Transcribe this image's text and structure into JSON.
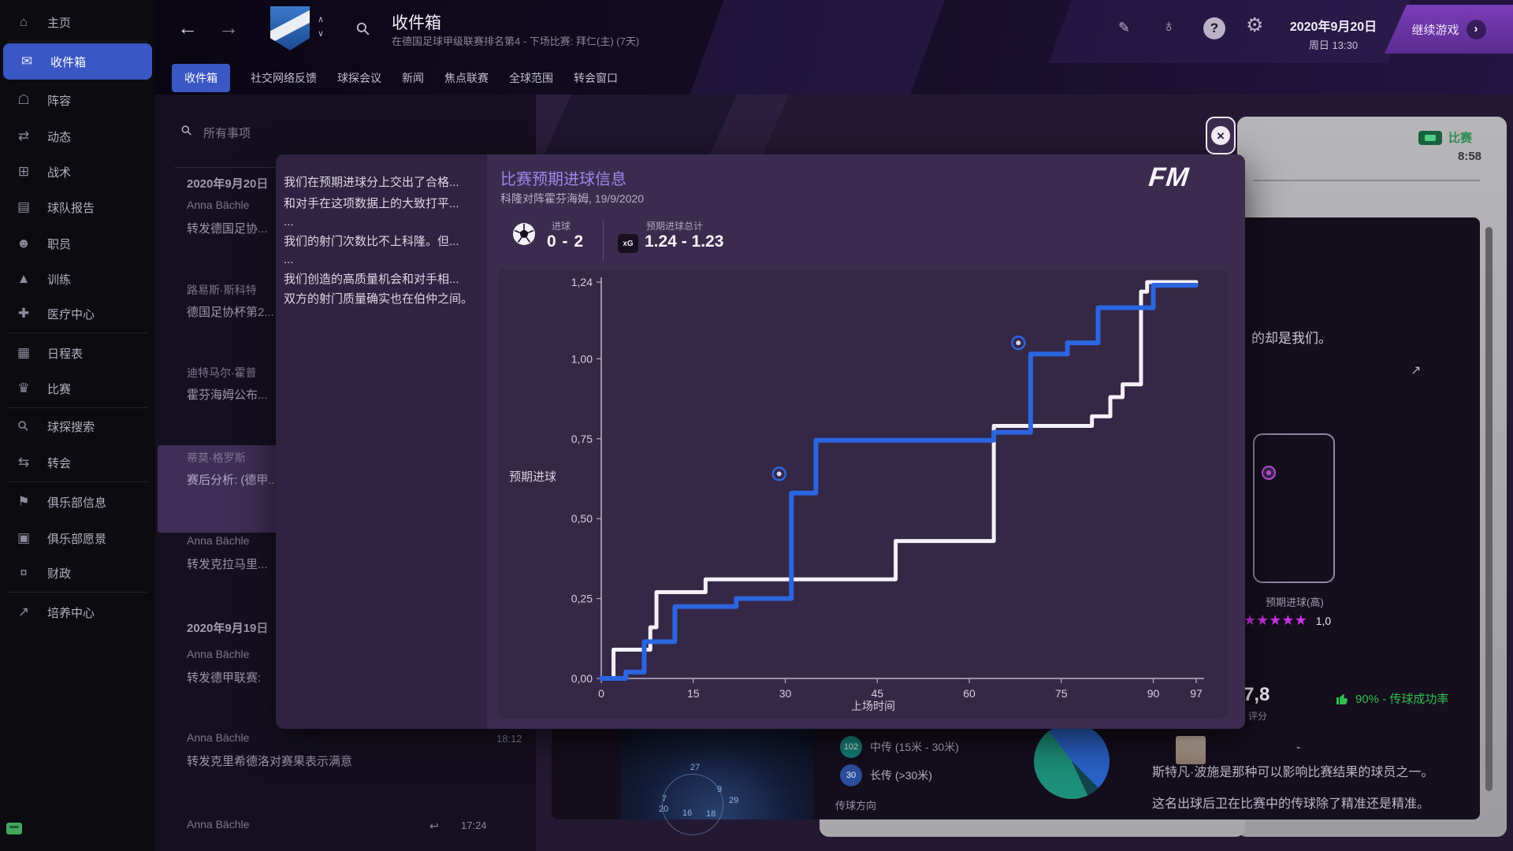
{
  "app": {
    "continue_label": "继续游戏",
    "date_line1": "2020年9月20日",
    "date_line2": "周日 13:30"
  },
  "header": {
    "title": "收件箱",
    "subtitle": "在德国足球甲级联赛排名第4 - 下场比赛: 拜仁(主) (7天)"
  },
  "tabs": [
    {
      "label": "收件箱",
      "active": true
    },
    {
      "label": "社交网络反馈",
      "active": false
    },
    {
      "label": "球探会议",
      "active": false
    },
    {
      "label": "新闻",
      "active": false
    },
    {
      "label": "焦点联赛",
      "active": false
    },
    {
      "label": "全球范围",
      "active": false
    },
    {
      "label": "转会窗口",
      "active": false
    }
  ],
  "sidebar": {
    "items": [
      {
        "label": "主页",
        "icon": "home-icon",
        "divider_after": true
      },
      {
        "label": "收件箱",
        "icon": "inbox-icon",
        "selected": true
      },
      {
        "label": "阵容",
        "icon": "squad-icon"
      },
      {
        "label": "动态",
        "icon": "dynamics-icon"
      },
      {
        "label": "战术",
        "icon": "tactics-icon"
      },
      {
        "label": "球队报告",
        "icon": "team-report-icon"
      },
      {
        "label": "职员",
        "icon": "staff-icon"
      },
      {
        "label": "训练",
        "icon": "training-icon"
      },
      {
        "label": "医疗中心",
        "icon": "medical-icon",
        "divider_after": true
      },
      {
        "label": "日程表",
        "icon": "schedule-icon"
      },
      {
        "label": "比赛",
        "icon": "matches-icon",
        "divider_after": true
      },
      {
        "label": "球探搜索",
        "icon": "scout-search-icon"
      },
      {
        "label": "转会",
        "icon": "transfers-icon",
        "divider_after": true
      },
      {
        "label": "俱乐部信息",
        "icon": "club-info-icon"
      },
      {
        "label": "俱乐部愿景",
        "icon": "club-vision-icon"
      },
      {
        "label": "财政",
        "icon": "finances-icon",
        "divider_after": true
      },
      {
        "label": "培养中心",
        "icon": "development-icon"
      }
    ]
  },
  "inbox": {
    "search_placeholder": "所有事项",
    "rows": [
      {
        "kind": "date",
        "label": "2020年9月20日"
      },
      {
        "kind": "message",
        "sender": "Anna Bächle",
        "subject": "转发德国足协..."
      },
      {
        "kind": "message",
        "sender": "路易斯·斯科特",
        "subject": "德国足协杯第2..."
      },
      {
        "kind": "message",
        "sender": "迪特马尔·霍普",
        "subject": "霍芬海姆公布..."
      },
      {
        "kind": "message",
        "sender": "蒂莫·格罗斯",
        "subject": "赛后分析: (德甲...",
        "selected": true
      },
      {
        "kind": "message",
        "sender": "Anna Bächle",
        "subject": "转发克拉马里..."
      },
      {
        "kind": "date",
        "label": "2020年9月19日"
      },
      {
        "kind": "message",
        "sender": "Anna Bächle",
        "subject": "转发德甲联赛:"
      },
      {
        "kind": "message",
        "sender": "Anna Bächle",
        "subject": "转发克里希德洛对赛果表示满意",
        "time": "18:12"
      },
      {
        "kind": "message",
        "sender": "Anna Bächle",
        "subject": "",
        "time": "17:24",
        "reply": true
      }
    ]
  },
  "message_snippet": {
    "lines": [
      "我们在预期进球分上交出了合格...",
      "和对手在这项数据上的大致打平...",
      "...",
      "我们的射门次数比不上科隆。但...",
      "...",
      "我们创造的高质量机会和对手相...",
      "双方的射门质量确实也在伯仲之间。"
    ]
  },
  "modal": {
    "title": "比赛预期进球信息",
    "subtitle": "科隆对阵霍芬海姆, 19/9/2020",
    "goals_label": "进球",
    "goals_value": "0 - 2",
    "xg_total_label": "预期进球总计",
    "xg_total_value": "1.24 - 1.23",
    "xg_badge": "xG",
    "logo": "FM"
  },
  "chart_data": {
    "type": "line",
    "subtype": "step-after",
    "title": "比赛预期进球信息",
    "xlabel": "上场时间",
    "ylabel": "预期进球",
    "xlim": [
      0,
      97
    ],
    "ylim": [
      0,
      1.24
    ],
    "x_ticks": [
      0,
      15,
      30,
      45,
      60,
      75,
      90,
      97
    ],
    "y_ticks": [
      0,
      0.25,
      0.5,
      0.75,
      1.0,
      1.24
    ],
    "y_tick_labels": [
      "0,00",
      "0,25",
      "0,50",
      "0,75",
      "1,00",
      "1,24"
    ],
    "grid": false,
    "legend_position": "none",
    "series": [
      {
        "name": "科隆",
        "color": "#f3f0f7",
        "stroke_width": 5,
        "points": [
          [
            0,
            0
          ],
          [
            2,
            0.09
          ],
          [
            8,
            0.16
          ],
          [
            9,
            0.27
          ],
          [
            17,
            0.31
          ],
          [
            48,
            0.43
          ],
          [
            64,
            0.79
          ],
          [
            80,
            0.82
          ],
          [
            83,
            0.88
          ],
          [
            85,
            0.92
          ],
          [
            88,
            1.21
          ],
          [
            89,
            1.24
          ]
        ],
        "final_xg": 1.24
      },
      {
        "name": "霍芬海姆",
        "color": "#2b65e0",
        "stroke_width": 6,
        "points": [
          [
            0,
            0
          ],
          [
            4,
            0.02
          ],
          [
            7,
            0.115
          ],
          [
            12,
            0.225
          ],
          [
            22,
            0.25
          ],
          [
            31,
            0.58
          ],
          [
            35,
            0.745
          ],
          [
            64,
            0.77
          ],
          [
            70,
            1.015
          ],
          [
            76,
            1.05
          ],
          [
            81,
            1.16
          ],
          [
            90,
            1.23
          ]
        ],
        "final_xg": 1.23
      }
    ],
    "goal_markers": [
      {
        "x": 29,
        "y": 0.64
      },
      {
        "x": 68,
        "y": 1.05
      }
    ]
  },
  "match_panel": {
    "badge_label": "比赛",
    "time": "8:58",
    "snippet": "的却是我们。",
    "xg_high_label": "预期进球(高)",
    "stars_count": 5,
    "stars_value": "1,0",
    "rating_value": "7,8",
    "rating_label": "评分",
    "pass_accuracy": "90% - 传球成功率",
    "dash": "-",
    "analysis_line1": "斯特凡·波施是那种可以影响比赛结果的球员之一。",
    "analysis_line2": "这名出球后卫在比赛中的传球除了精准还是精准。"
  },
  "pass_panel": {
    "stats": [
      {
        "count": "102",
        "label": "中传 (15米 - 30米)",
        "color": "#17807a"
      },
      {
        "count": "30",
        "label": "长传  (>30米)",
        "color": "#2c4f9e"
      }
    ],
    "direction_label": "传球方向",
    "heatmap_values": [
      {
        "v": "27",
        "x": 88,
        "y": 46
      },
      {
        "v": "9",
        "x": 122,
        "y": 74
      },
      {
        "v": "7",
        "x": 52,
        "y": 86
      },
      {
        "v": "20",
        "x": 48,
        "y": 99
      },
      {
        "v": "16",
        "x": 78,
        "y": 104
      },
      {
        "v": "18",
        "x": 108,
        "y": 105
      },
      {
        "v": "29",
        "x": 137,
        "y": 88
      }
    ]
  },
  "icons": {
    "back": "←",
    "forward": "→",
    "up": "∧",
    "down": "∨",
    "search": "⚲",
    "edit": "✎",
    "world": "♁",
    "help": "?",
    "settings": "⚙",
    "close": "×",
    "continue": "›",
    "reply": "↩",
    "expand": "↗",
    "home-icon": "⌂",
    "inbox-icon": "✉",
    "squad-icon": "☖",
    "dynamics-icon": "⇄",
    "tactics-icon": "⊞",
    "team-report-icon": "▤",
    "staff-icon": "☻",
    "training-icon": "▲",
    "medical-icon": "✚",
    "schedule-icon": "▦",
    "matches-icon": "♛",
    "scout-search-icon": "⚲",
    "transfers-icon": "⇆",
    "club-info-icon": "⚑",
    "club-vision-icon": "▣",
    "finances-icon": "¤",
    "development-icon": "↗"
  },
  "colors": {
    "accent_blue": "#3a57c4",
    "home_line": "#f3f0f7",
    "away_line": "#2b65e0",
    "star": "#ce32e6",
    "positive_green": "#2fbf4f"
  }
}
